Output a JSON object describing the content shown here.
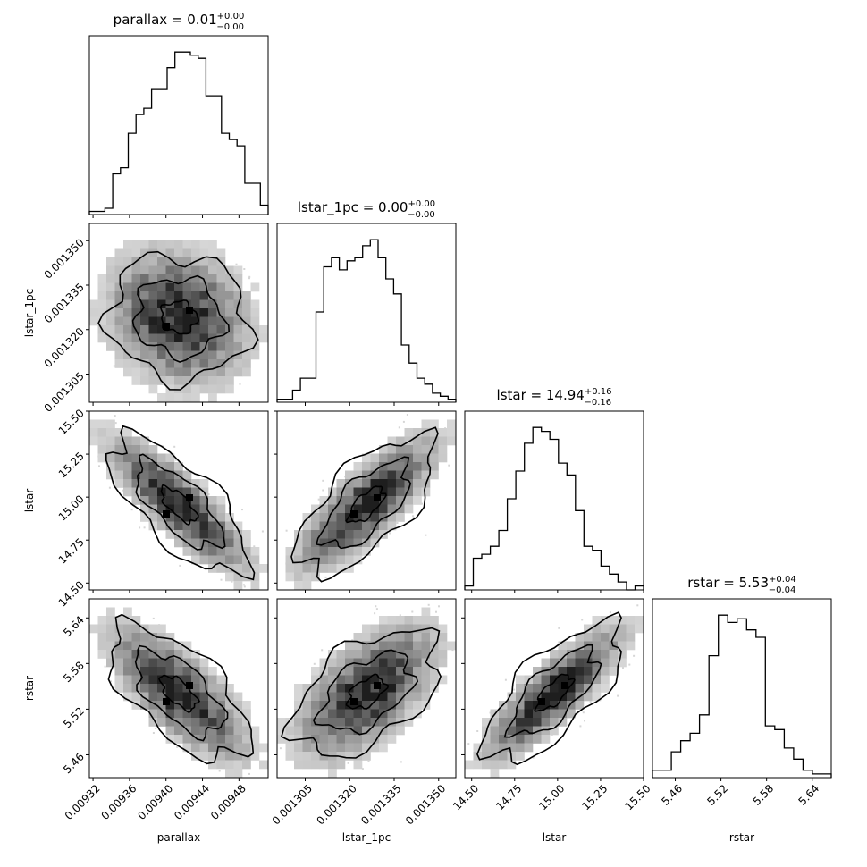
{
  "chart_data": {
    "type": "corner",
    "parameters": [
      {
        "name": "parallax",
        "label": "parallax",
        "title": "parallax = 0.01",
        "up": "+0.00",
        "lo": "−0.00",
        "range": [
          0.009316,
          0.009512
        ],
        "ticks": [
          0.00932,
          0.00936,
          0.0094,
          0.00944,
          0.00948
        ],
        "tick_labels": [
          "0.00932",
          "0.00936",
          "0.00940",
          "0.00944",
          "0.00948"
        ],
        "hist": [
          1,
          1,
          2,
          13,
          15,
          26,
          32,
          34,
          40,
          40,
          47,
          52,
          52,
          51,
          50,
          38,
          38,
          26,
          24,
          22,
          10,
          10,
          3
        ]
      },
      {
        "name": "lstar_1pc",
        "label": "lstar_1pc",
        "title": "lstar_1pc = 0.00",
        "up": "+0.00",
        "lo": "−0.00",
        "range": [
          0.0012955,
          0.0013558
        ],
        "ticks": [
          0.001305,
          0.00132,
          0.001335,
          0.00135
        ],
        "tick_labels": [
          "0.001305",
          "0.001320",
          "0.001335",
          "0.001350"
        ],
        "hist": [
          1,
          1,
          4,
          8,
          8,
          30,
          45,
          48,
          44,
          47,
          48,
          52,
          54,
          48,
          41,
          36,
          19,
          13,
          8,
          6,
          3,
          2,
          1
        ]
      },
      {
        "name": "lstar",
        "label": "lstar",
        "title": "lstar = 14.94",
        "up": "+0.16",
        "lo": "−0.16",
        "range": [
          14.46,
          15.5
        ],
        "ticks": [
          14.5,
          14.75,
          15.0,
          15.25,
          15.5
        ],
        "tick_labels": [
          "14.50",
          "14.75",
          "15.00",
          "15.25",
          "15.50"
        ],
        "hist": [
          1,
          8,
          9,
          11,
          15,
          23,
          30,
          37,
          41,
          40,
          38,
          32,
          29,
          20,
          11,
          10,
          6,
          4,
          2,
          0,
          1
        ]
      },
      {
        "name": "rstar",
        "label": "rstar",
        "title": "rstar = 5.53",
        "up": "+0.04",
        "lo": "−0.04",
        "range": [
          5.43,
          5.665
        ],
        "ticks": [
          5.46,
          5.52,
          5.58,
          5.64
        ],
        "tick_labels": [
          "5.46",
          "5.52",
          "5.58",
          "5.64"
        ],
        "hist": [
          2,
          2,
          7,
          10,
          12,
          17,
          33,
          44,
          42,
          43,
          40,
          38,
          14,
          13,
          8,
          5,
          2,
          1,
          1
        ]
      }
    ],
    "pairs": [
      {
        "x": "parallax",
        "y": "lstar_1pc",
        "rho": -0.15
      },
      {
        "x": "parallax",
        "y": "lstar",
        "rho": -0.85
      },
      {
        "x": "lstar_1pc",
        "y": "lstar",
        "rho": 0.8
      },
      {
        "x": "parallax",
        "y": "rstar",
        "rho": -0.75
      },
      {
        "x": "lstar_1pc",
        "y": "rstar",
        "rho": 0.6
      },
      {
        "x": "lstar",
        "y": "rstar",
        "rho": 0.85
      }
    ],
    "grid": false
  }
}
